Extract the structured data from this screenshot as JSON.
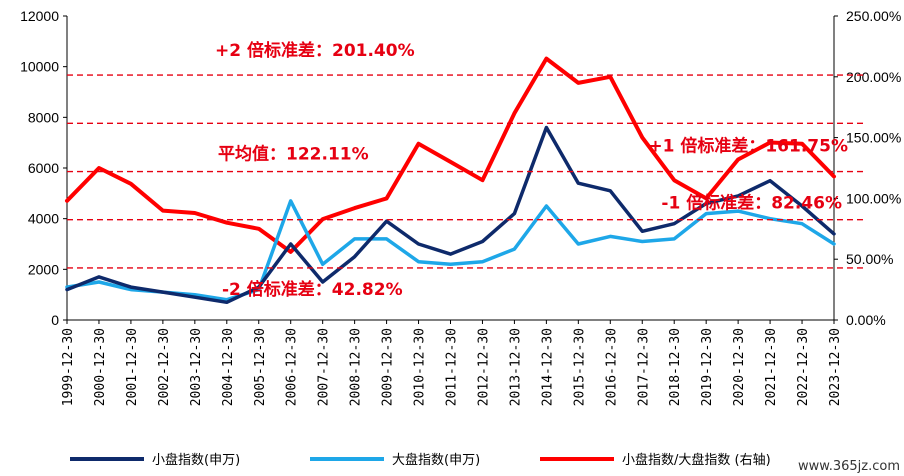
{
  "chart_data": {
    "type": "line",
    "x_labels": [
      "1999-12-30",
      "2000-12-30",
      "2001-12-30",
      "2002-12-30",
      "2003-12-30",
      "2004-12-30",
      "2005-12-30",
      "2006-12-30",
      "2007-12-30",
      "2008-12-30",
      "2009-12-30",
      "2010-12-30",
      "2011-12-30",
      "2012-12-30",
      "2013-12-30",
      "2014-12-30",
      "2015-12-30",
      "2016-12-30",
      "2017-12-30",
      "2018-12-30",
      "2019-12-30",
      "2020-12-30",
      "2021-12-30",
      "2022-12-30",
      "2023-12-30"
    ],
    "y_left": {
      "ticks": [
        "0",
        "2000",
        "4000",
        "6000",
        "8000",
        "10000",
        "12000"
      ],
      "range": [
        0,
        12000
      ]
    },
    "y_right": {
      "ticks": [
        "0.00%",
        "50.00%",
        "100.00%",
        "150.00%",
        "200.00%",
        "250.00%"
      ],
      "range": [
        0,
        250
      ]
    },
    "series": [
      {
        "name": "小盘指数(申万)",
        "axis": "left",
        "color": "#0e2a6b",
        "values": [
          1200,
          1700,
          1300,
          1100,
          900,
          700,
          1300,
          3000,
          1500,
          2500,
          3900,
          3000,
          2600,
          3100,
          4200,
          7600,
          5400,
          5100,
          3500,
          3800,
          4600,
          4900,
          5500,
          4500,
          3400
        ]
      },
      {
        "name": "大盘指数(申万)",
        "axis": "left",
        "color": "#1ea7e8",
        "values": [
          1300,
          1500,
          1200,
          1100,
          1000,
          800,
          1200,
          4700,
          2200,
          3200,
          3200,
          2300,
          2200,
          2300,
          2800,
          4500,
          3000,
          3300,
          3100,
          3200,
          4200,
          4300,
          4000,
          3800,
          3000
        ]
      },
      {
        "name": "小盘指数/大盘指数 (右轴)",
        "axis": "right",
        "color": "#ff0000",
        "values": [
          98,
          125,
          112,
          90,
          88,
          80,
          75,
          56,
          83,
          92,
          100,
          145,
          130,
          115,
          170,
          215,
          195,
          200,
          150,
          115,
          100,
          132,
          146,
          145,
          118
        ]
      }
    ],
    "reference_lines": [
      {
        "label": "+2 倍标准差：201.40%",
        "value": 201.4
      },
      {
        "label": "+1 倍标准差：161.75%",
        "value": 161.75
      },
      {
        "label": "平均值：122.11%",
        "value": 122.11
      },
      {
        "label": "-1 倍标准差：82.46%",
        "value": 82.46
      },
      {
        "label": "-2 倍标准差：42.82%",
        "value": 42.82
      }
    ],
    "legend_position": "bottom",
    "grid": false
  },
  "watermark": "www.365jz.com"
}
